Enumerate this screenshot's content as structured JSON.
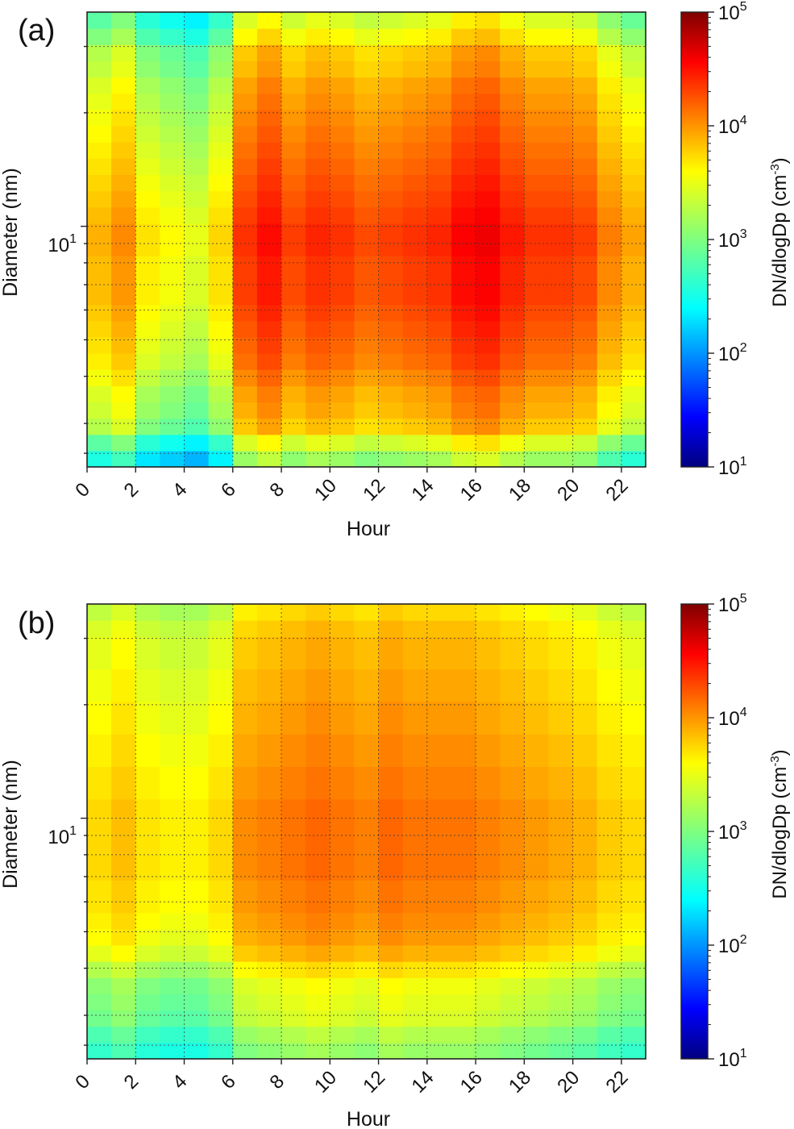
{
  "chart_data": [
    {
      "type": "heatmap",
      "panel_label": "(a)",
      "xlabel": "Hour",
      "ylabel": "Diameter (nm)",
      "x_ticks": [
        "0",
        "2",
        "4",
        "6",
        "8",
        "10",
        "12",
        "14",
        "16",
        "18",
        "20",
        "22"
      ],
      "x_range": [
        0,
        23
      ],
      "y_scale": "log",
      "y_range_nm": [
        2.3,
        37
      ],
      "y_tick_labels": [
        "10",
        "1"
      ],
      "y_gridlines_nm": [
        2.5,
        3,
        4,
        5,
        6,
        7,
        8,
        9,
        10,
        20,
        30
      ],
      "grid": "dotted",
      "colorbar": {
        "label": "DN/dlogDp (cm",
        "label_exp": "-3",
        "label_close": ")",
        "scale": "log",
        "range": [
          10,
          100000
        ],
        "ticks": [
          {
            "base": "10",
            "exp": "5"
          },
          {
            "base": "10",
            "exp": "4"
          },
          {
            "base": "10",
            "exp": "3"
          },
          {
            "base": "10",
            "exp": "2"
          },
          {
            "base": "10",
            "exp": "1"
          }
        ],
        "colormap": "jet"
      },
      "n_diameter_bins": 28,
      "hour_profile_log10": [
        3.45,
        3.6,
        3.25,
        3.15,
        3.05,
        3.3,
        3.95,
        4.1,
        3.9,
        4.0,
        3.95,
        3.85,
        3.9,
        3.95,
        4.0,
        4.15,
        4.2,
        4.05,
        3.95,
        3.95,
        3.9,
        3.65,
        3.5
      ],
      "size_profile_log10": [
        3.1,
        3.35,
        3.7,
        3.8,
        3.85,
        3.95,
        4.05,
        4.1,
        4.15,
        4.2,
        4.25,
        4.25,
        4.25,
        4.3,
        4.3,
        4.25,
        4.2,
        4.15,
        4.1,
        4.05,
        4.0,
        3.95,
        3.9,
        3.85,
        3.75,
        3.7,
        3.5,
        3.35
      ]
    },
    {
      "type": "heatmap",
      "panel_label": "(b)",
      "xlabel": "Hour",
      "ylabel": "Diameter (nm)",
      "x_ticks": [
        "0",
        "2",
        "4",
        "6",
        "8",
        "10",
        "12",
        "14",
        "16",
        "18",
        "20",
        "22"
      ],
      "x_range": [
        0,
        23
      ],
      "y_scale": "log",
      "y_range_nm": [
        2.3,
        37
      ],
      "y_tick_labels": [
        "10",
        "1"
      ],
      "y_gridlines_nm": [
        2.5,
        3,
        4,
        5,
        6,
        7,
        8,
        9,
        10,
        20,
        30
      ],
      "grid": "dotted",
      "colorbar": {
        "label": "DN/dlogDp (cm",
        "label_exp": "-3",
        "label_close": ")",
        "scale": "log",
        "range": [
          10,
          100000
        ],
        "ticks": [
          {
            "base": "10",
            "exp": "5"
          },
          {
            "base": "10",
            "exp": "4"
          },
          {
            "base": "10",
            "exp": "3"
          },
          {
            "base": "10",
            "exp": "2"
          },
          {
            "base": "10",
            "exp": "1"
          }
        ],
        "colormap": "jet"
      },
      "n_diameter_bins": 28,
      "hour_profile_log10": [
        3.4,
        3.5,
        3.35,
        3.3,
        3.3,
        3.4,
        3.7,
        3.75,
        3.8,
        3.85,
        3.8,
        3.75,
        3.85,
        3.8,
        3.8,
        3.8,
        3.75,
        3.7,
        3.65,
        3.6,
        3.55,
        3.45,
        3.4
      ],
      "size_profile_log10": [
        3.05,
        3.15,
        3.3,
        3.35,
        3.4,
        3.55,
        3.75,
        3.85,
        3.9,
        3.95,
        3.95,
        4.0,
        4.0,
        4.0,
        4.0,
        4.0,
        3.95,
        3.95,
        3.9,
        3.9,
        3.85,
        3.85,
        3.8,
        3.8,
        3.75,
        3.75,
        3.7,
        3.6
      ]
    }
  ]
}
